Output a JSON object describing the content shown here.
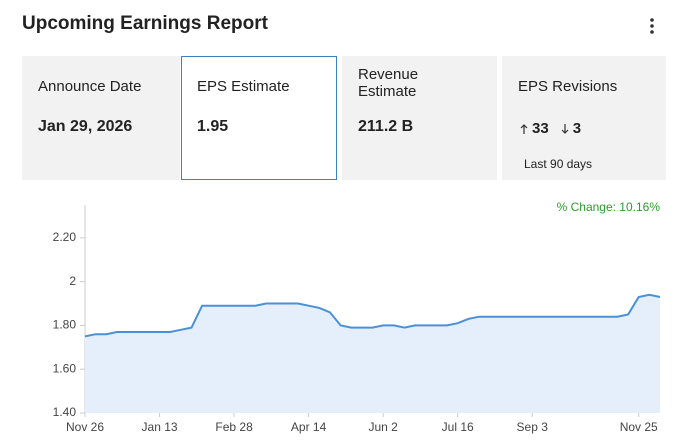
{
  "header": {
    "title": "Upcoming Earnings Report"
  },
  "cards": [
    {
      "label": "Announce Date",
      "value": "Jan 29, 2026"
    },
    {
      "label": "EPS Estimate",
      "value": "1.95"
    },
    {
      "label": "Revenue Estimate",
      "value": "211.2 B"
    },
    {
      "label": "EPS Revisions",
      "up": "33",
      "down": "3",
      "note": "Last 90 days"
    }
  ],
  "chart_data": {
    "type": "area",
    "annotation": "% Change: 10.16%",
    "categories": [
      "Nov 26",
      null,
      null,
      null,
      null,
      null,
      null,
      "Jan 13",
      null,
      null,
      null,
      null,
      null,
      null,
      "Feb 28",
      null,
      null,
      null,
      null,
      null,
      null,
      "Apr 14",
      null,
      null,
      null,
      null,
      null,
      null,
      "Jun 2",
      null,
      null,
      null,
      null,
      null,
      null,
      "Jul 16",
      null,
      null,
      null,
      null,
      null,
      null,
      "Sep 3",
      null,
      null,
      null,
      null,
      null,
      null,
      null,
      null,
      null,
      "Nov 25",
      null,
      null
    ],
    "values": [
      1.75,
      1.76,
      1.76,
      1.77,
      1.77,
      1.77,
      1.77,
      1.77,
      1.77,
      1.78,
      1.79,
      1.89,
      1.89,
      1.89,
      1.89,
      1.89,
      1.89,
      1.9,
      1.9,
      1.9,
      1.9,
      1.89,
      1.88,
      1.86,
      1.8,
      1.79,
      1.79,
      1.79,
      1.8,
      1.8,
      1.79,
      1.8,
      1.8,
      1.8,
      1.8,
      1.81,
      1.83,
      1.84,
      1.84,
      1.84,
      1.84,
      1.84,
      1.84,
      1.84,
      1.84,
      1.84,
      1.84,
      1.84,
      1.84,
      1.84,
      1.84,
      1.85,
      1.93,
      1.94,
      1.93
    ],
    "color": "#4a90d9",
    "fill": "#e4effb",
    "annotation_color": "#2e9a2e",
    "ylim": [
      1.4,
      2.35
    ],
    "yticks": [
      {
        "value": 1.4,
        "label": "1.40"
      },
      {
        "value": 1.6,
        "label": "1.60"
      },
      {
        "value": 1.8,
        "label": "1.80"
      },
      2,
      {
        "value": 2.2,
        "label": "2.20"
      }
    ]
  }
}
